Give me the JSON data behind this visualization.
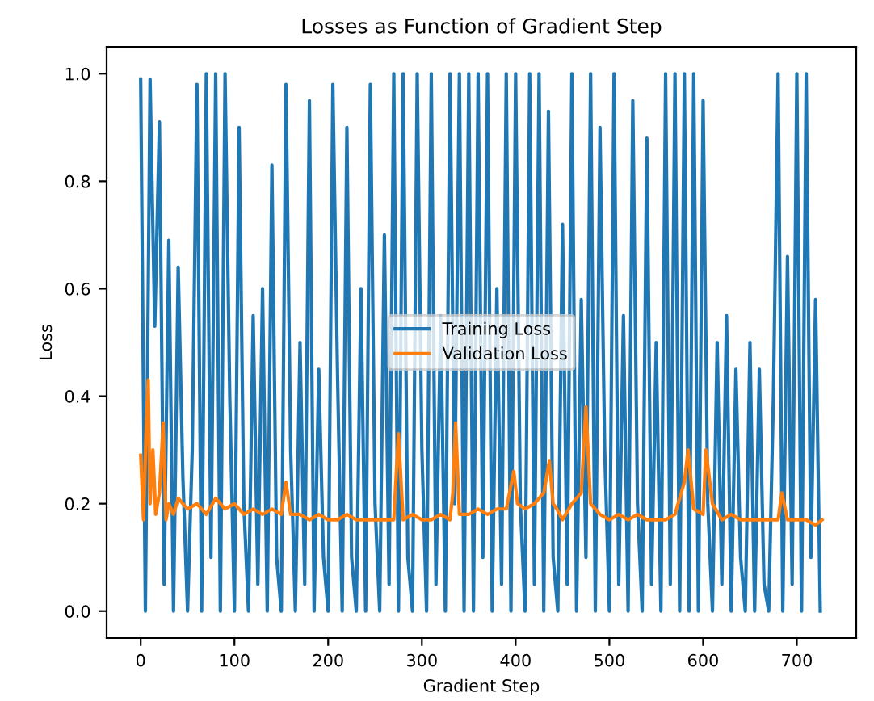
{
  "chart_data": {
    "type": "line",
    "title": "Losses as Function of Gradient Step",
    "xlabel": "Gradient Step",
    "ylabel": "Loss",
    "xlim": [
      -36.35,
      763.35
    ],
    "ylim": [
      -0.05,
      1.05
    ],
    "xticks": [
      0,
      100,
      200,
      300,
      400,
      500,
      600,
      700
    ],
    "yticks": [
      {
        "value": 0,
        "label": "0.0"
      },
      {
        "value": 0.2,
        "label": "0.2"
      },
      {
        "value": 0.4,
        "label": "0.4"
      },
      {
        "value": 0.6,
        "label": "0.6"
      },
      {
        "value": 0.8,
        "label": "0.8"
      },
      {
        "value": 1,
        "label": "1.0"
      }
    ],
    "grid": false,
    "legend": "center",
    "marker": "none",
    "line_style": "solid",
    "series": [
      {
        "name": "Training Loss",
        "color": "#1f77b4",
        "x": [
          0,
          5,
          10,
          15,
          20,
          25,
          30,
          35,
          40,
          45,
          50,
          55,
          60,
          65,
          70,
          75,
          80,
          85,
          90,
          95,
          100,
          105,
          110,
          115,
          120,
          125,
          130,
          135,
          140,
          145,
          150,
          155,
          160,
          165,
          170,
          175,
          180,
          185,
          190,
          195,
          200,
          205,
          210,
          215,
          220,
          225,
          230,
          235,
          240,
          245,
          250,
          255,
          260,
          265,
          270,
          275,
          280,
          285,
          290,
          295,
          300,
          305,
          310,
          315,
          320,
          325,
          330,
          335,
          340,
          345,
          350,
          355,
          360,
          365,
          370,
          375,
          380,
          385,
          390,
          395,
          400,
          405,
          410,
          415,
          420,
          425,
          430,
          435,
          440,
          445,
          450,
          455,
          460,
          465,
          470,
          475,
          480,
          485,
          490,
          495,
          500,
          505,
          510,
          515,
          520,
          525,
          530,
          535,
          540,
          545,
          550,
          555,
          560,
          565,
          570,
          575,
          580,
          585,
          590,
          595,
          600,
          605,
          610,
          615,
          620,
          625,
          630,
          635,
          640,
          645,
          650,
          655,
          660,
          665,
          670,
          675,
          680,
          685,
          690,
          695,
          700,
          705,
          710,
          715,
          720,
          725
        ],
        "values": [
          0.99,
          0.0,
          0.99,
          0.53,
          0.91,
          0.05,
          0.69,
          0.0,
          0.64,
          0.25,
          0.0,
          0.3,
          0.98,
          0.0,
          1.0,
          0.1,
          1.0,
          0.0,
          1.0,
          0.4,
          0.0,
          0.9,
          0.2,
          0.0,
          0.55,
          0.05,
          0.6,
          0.0,
          0.83,
          0.1,
          0.0,
          0.98,
          0.3,
          0.0,
          0.5,
          0.05,
          0.95,
          0.0,
          0.45,
          0.1,
          0.0,
          0.98,
          0.44,
          0.0,
          0.9,
          0.1,
          0.0,
          0.6,
          0.0,
          0.98,
          0.2,
          0.0,
          0.7,
          0.05,
          1.0,
          0.0,
          1.0,
          0.1,
          0.0,
          1.0,
          0.3,
          0.0,
          1.0,
          0.05,
          0.55,
          0.0,
          1.0,
          0.2,
          1.0,
          0.0,
          1.0,
          0.0,
          1.0,
          0.1,
          1.0,
          0.0,
          0.6,
          0.05,
          1.0,
          0.0,
          1.0,
          0.2,
          0.0,
          1.0,
          0.05,
          1.0,
          0.0,
          0.93,
          0.1,
          0.0,
          0.72,
          0.05,
          1.0,
          0.0,
          0.58,
          0.1,
          1.0,
          0.0,
          0.9,
          0.3,
          0.0,
          1.0,
          0.05,
          0.55,
          0.0,
          0.95,
          0.2,
          0.0,
          0.88,
          0.05,
          0.5,
          0.0,
          1.0,
          0.05,
          1.0,
          0.0,
          1.0,
          0.0,
          1.0,
          0.0,
          0.95,
          0.2,
          0.0,
          0.5,
          0.05,
          0.55,
          0.0,
          0.45,
          0.1,
          0.0,
          0.5,
          0.0,
          0.45,
          0.05,
          0.0,
          0.4,
          1.0,
          0.0,
          0.66,
          0.05,
          1.0,
          0.0,
          1.0,
          0.1,
          0.58,
          0.0
        ]
      },
      {
        "name": "Validation Loss",
        "color": "#ff7f0e",
        "x": [
          0,
          3,
          6,
          8,
          10,
          13,
          16,
          20,
          24,
          27,
          30,
          35,
          40,
          50,
          60,
          70,
          80,
          90,
          100,
          110,
          120,
          130,
          140,
          150,
          155,
          160,
          170,
          180,
          190,
          200,
          210,
          220,
          230,
          240,
          250,
          260,
          270,
          275,
          280,
          290,
          300,
          310,
          320,
          330,
          333,
          336,
          340,
          350,
          360,
          370,
          380,
          390,
          398,
          402,
          410,
          420,
          430,
          436,
          440,
          444,
          450,
          460,
          470,
          475,
          480,
          490,
          500,
          510,
          520,
          530,
          540,
          550,
          560,
          570,
          580,
          584,
          590,
          600,
          603,
          610,
          620,
          630,
          640,
          650,
          660,
          670,
          680,
          684,
          690,
          700,
          710,
          720,
          727
        ],
        "values": [
          0.29,
          0.17,
          0.35,
          0.43,
          0.2,
          0.3,
          0.18,
          0.22,
          0.35,
          0.17,
          0.2,
          0.18,
          0.21,
          0.19,
          0.2,
          0.18,
          0.21,
          0.19,
          0.2,
          0.18,
          0.19,
          0.18,
          0.19,
          0.18,
          0.24,
          0.18,
          0.18,
          0.17,
          0.18,
          0.17,
          0.17,
          0.18,
          0.17,
          0.17,
          0.17,
          0.17,
          0.17,
          0.33,
          0.17,
          0.18,
          0.17,
          0.17,
          0.18,
          0.17,
          0.22,
          0.35,
          0.18,
          0.18,
          0.19,
          0.18,
          0.19,
          0.19,
          0.26,
          0.2,
          0.19,
          0.2,
          0.22,
          0.28,
          0.2,
          0.19,
          0.17,
          0.2,
          0.22,
          0.38,
          0.2,
          0.18,
          0.17,
          0.18,
          0.17,
          0.18,
          0.17,
          0.17,
          0.17,
          0.18,
          0.24,
          0.3,
          0.19,
          0.18,
          0.3,
          0.2,
          0.17,
          0.18,
          0.17,
          0.17,
          0.17,
          0.17,
          0.17,
          0.22,
          0.17,
          0.17,
          0.17,
          0.16,
          0.17
        ]
      }
    ]
  }
}
